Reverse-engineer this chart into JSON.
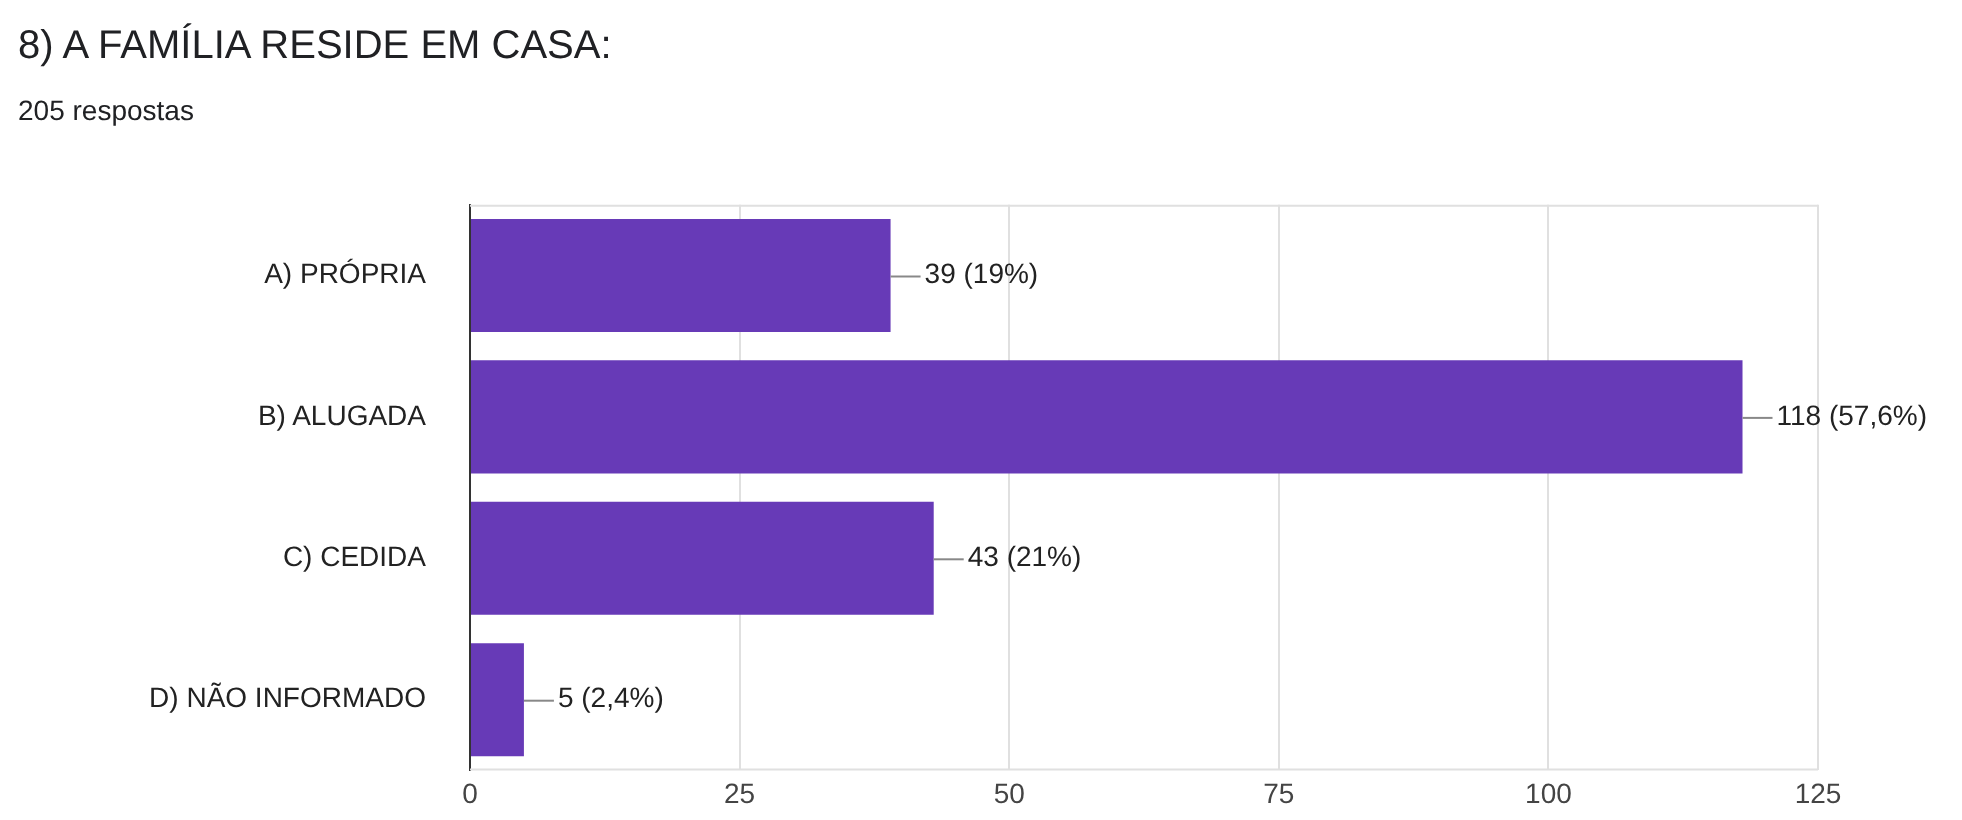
{
  "chart_data": {
    "type": "bar",
    "orientation": "horizontal",
    "title": "8) A FAMÍLIA RESIDE EM CASA:",
    "subtitle": "205 respostas",
    "categories": [
      "A) PRÓPRIA",
      "B) ALUGADA",
      "C) CEDIDA",
      "D) NÃO INFORMADO"
    ],
    "values": [
      39,
      118,
      43,
      5
    ],
    "color": "#673ab7",
    "value_labels": [
      "39 (19%)",
      "118 (57,6%)",
      "43 (21%)",
      "5 (2,4%)"
    ],
    "xlim": [
      0,
      125
    ],
    "xticks": [
      0,
      25,
      50,
      75,
      100,
      125
    ],
    "grid": "x",
    "legend": false
  }
}
